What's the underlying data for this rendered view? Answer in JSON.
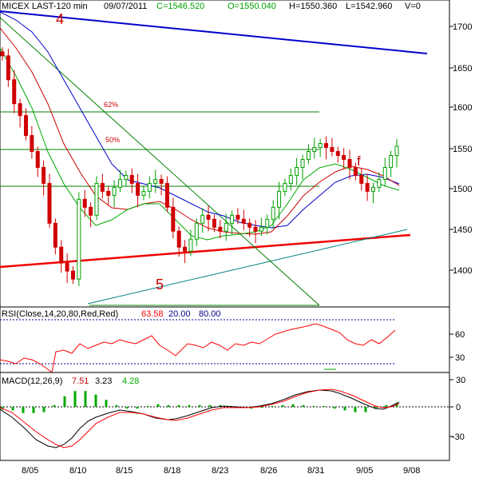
{
  "header": {
    "symbol": "MICEX LAST-120 min",
    "date": "09/07/2011",
    "close": "C=1546.520",
    "open": "O=1550.040",
    "high": "H=1550.360",
    "low": "L=1542.960",
    "volume": "V=0"
  },
  "annotations": {
    "wave4": "4",
    "wave5": "5",
    "fib62": "62%",
    "fib50": "50%",
    "f": "f"
  },
  "rsi_header": {
    "title": "RSI(Close,14,20,80,Red,Red)",
    "value": "63.58",
    "lower": "20.00",
    "upper": "80.00"
  },
  "macd_header": {
    "title": "MACD(12,26,9)",
    "macd": "7.51",
    "signal": "3.23",
    "hist": "4.28"
  },
  "colors": {
    "up_candle": "#00a000",
    "down_candle": "#d00000",
    "blue_line": "#0000cc",
    "red_line": "#ff0000",
    "green_line": "#008000",
    "teal_line": "#008080",
    "rsi_line": "#ff0000",
    "rsi_band": "#00008b",
    "macd_line": "#000000",
    "signal_line": "#ff0000",
    "hist": "#00aa00"
  },
  "chart_data": [
    {
      "type": "candlestick",
      "title": "MICEX LAST-120 min",
      "y_ticks": [
        1400,
        1450,
        1500,
        1550,
        1600,
        1650,
        1700
      ],
      "ylim": [
        1345,
        1730
      ],
      "x_ticks": [
        "8/05",
        "8/10",
        "8/15",
        "8/18",
        "8/23",
        "8/26",
        "8/31",
        "9/05",
        "9/08"
      ],
      "close_series": [
        1660,
        1630,
        1600,
        1585,
        1560,
        1540,
        1520,
        1500,
        1450,
        1420,
        1400,
        1390,
        1380,
        1480,
        1470,
        1460,
        1500,
        1490,
        1485,
        1495,
        1505,
        1510,
        1500,
        1485,
        1490,
        1500,
        1505,
        1500,
        1470,
        1440,
        1420,
        1415,
        1430,
        1450,
        1460,
        1455,
        1445,
        1440,
        1450,
        1460,
        1455,
        1450,
        1445,
        1440,
        1445,
        1455,
        1470,
        1490,
        1500,
        1510,
        1520,
        1530,
        1540,
        1545,
        1550,
        1545,
        1540,
        1535,
        1530,
        1520,
        1510,
        1500,
        1490,
        1495,
        1505,
        1520,
        1535,
        1546.52
      ],
      "horizontal_levels": [
        {
          "label": "62%",
          "value": 1595
        },
        {
          "label": "50%",
          "value": 1550
        },
        {
          "label": "",
          "value": 1505
        }
      ],
      "trendlines": [
        {
          "name": "4",
          "color": "blue"
        },
        {
          "name": "5",
          "color": "teal"
        },
        {
          "name": "",
          "color": "red"
        },
        {
          "name": "",
          "color": "green"
        }
      ]
    },
    {
      "type": "line",
      "title": "RSI(Close,14,20,80,Red,Red)",
      "y_ticks": [
        30,
        60
      ],
      "ylim": [
        15,
        90
      ],
      "bands": [
        20,
        80
      ],
      "values": [
        20,
        28,
        40,
        30,
        42,
        45,
        44,
        48,
        52,
        50,
        54,
        56,
        50,
        52,
        55,
        58,
        54,
        50,
        48,
        52,
        56,
        60,
        62,
        58,
        55,
        52,
        54,
        50,
        45,
        48,
        52,
        55,
        60,
        66,
        70,
        68,
        64,
        66,
        62,
        58,
        56,
        55,
        52,
        54,
        60,
        58,
        50,
        46,
        48,
        52,
        56,
        60,
        63.58
      ]
    },
    {
      "type": "line",
      "title": "MACD(12,26,9)",
      "y_ticks": [
        -30,
        0,
        30
      ],
      "ylim": [
        -60,
        40
      ],
      "series": [
        {
          "name": "MACD",
          "values": [
            -5,
            -12,
            -25,
            -35,
            -42,
            -40,
            -32,
            -22,
            -14,
            -10,
            -8,
            -10,
            -14,
            -16,
            -15,
            -12,
            -10,
            -8,
            -6,
            -3,
            0,
            3,
            5,
            4,
            2,
            4,
            8,
            13,
            18,
            21,
            23,
            24,
            20,
            14,
            6,
            -2,
            -2,
            2,
            7.51
          ]
        },
        {
          "name": "Signal",
          "values": [
            -2,
            -8,
            -18,
            -28,
            -36,
            -42,
            -44,
            -40,
            -32,
            -24,
            -16,
            -12,
            -12,
            -14,
            -16,
            -15,
            -12,
            -10,
            -8,
            -5,
            -2,
            1,
            4,
            5,
            4,
            5,
            7,
            11,
            15,
            19,
            22,
            23,
            22,
            18,
            12,
            4,
            0,
            0,
            3.23
          ]
        }
      ],
      "hist": [
        -3,
        -4,
        -7,
        -7,
        -6,
        2,
        12,
        18,
        18,
        14,
        8,
        2,
        -2,
        -2,
        1,
        3,
        2,
        2,
        2,
        2,
        2,
        2,
        1,
        -1,
        -2,
        -1,
        1,
        2,
        3,
        2,
        1,
        1,
        -2,
        -4,
        -6,
        -6,
        -2,
        2,
        4.28
      ]
    }
  ]
}
